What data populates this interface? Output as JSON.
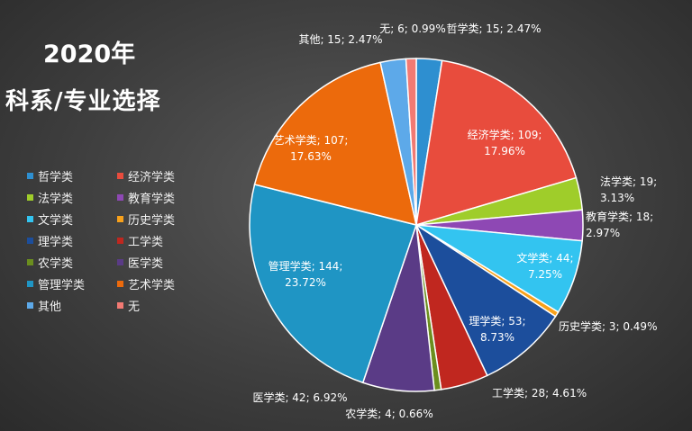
{
  "chart_data": {
    "type": "pie",
    "title_line1": "2020年",
    "title_line2": "科系/专业选择",
    "legend_placement": "left",
    "slices": [
      {
        "name": "哲学类",
        "value": 15,
        "percent": "2.47%",
        "color": "#2e8fd0",
        "label_lines": [
          "哲学类; 15; 2.47%"
        ]
      },
      {
        "name": "经济学类",
        "value": 109,
        "percent": "17.96%",
        "color": "#e84c3d",
        "label_lines": [
          "经济学类; 109;",
          "17.96%"
        ]
      },
      {
        "name": "法学类",
        "value": 19,
        "percent": "3.13%",
        "color": "#9fcd2a",
        "label_lines": [
          "法学类; 19;",
          "3.13%"
        ]
      },
      {
        "name": "教育学类",
        "value": 18,
        "percent": "2.97%",
        "color": "#8e48b4",
        "label_lines": [
          "教育学类; 18;",
          "2.97%"
        ]
      },
      {
        "name": "文学类",
        "value": 44,
        "percent": "7.25%",
        "color": "#33c4f0",
        "label_lines": [
          "文学类; 44;",
          "7.25%"
        ]
      },
      {
        "name": "历史学类",
        "value": 3,
        "percent": "0.49%",
        "color": "#f8a11b",
        "label_lines": [
          "历史学类; 3; 0.49%"
        ]
      },
      {
        "name": "理学类",
        "value": 53,
        "percent": "8.73%",
        "color": "#1c4e9c",
        "label_lines": [
          "理学类; 53;",
          "8.73%"
        ]
      },
      {
        "name": "工学类",
        "value": 28,
        "percent": "4.61%",
        "color": "#c0271f",
        "label_lines": [
          "工学类; 28; 4.61%"
        ]
      },
      {
        "name": "农学类",
        "value": 4,
        "percent": "0.66%",
        "color": "#6b8e1e",
        "label_lines": [
          "农学类; 4; 0.66%"
        ]
      },
      {
        "name": "医学类",
        "value": 42,
        "percent": "6.92%",
        "color": "#5a3b86",
        "label_lines": [
          "医学类; 42; 6.92%"
        ]
      },
      {
        "name": "管理学类",
        "value": 144,
        "percent": "23.72%",
        "color": "#1f95c4",
        "label_lines": [
          "管理学类; 144;",
          "23.72%"
        ]
      },
      {
        "name": "艺术学类",
        "value": 107,
        "percent": "17.63%",
        "color": "#ec6a0c",
        "label_lines": [
          "艺术学类; 107;",
          "17.63%"
        ]
      },
      {
        "name": "其他",
        "value": 15,
        "percent": "2.47%",
        "color": "#5da9e9",
        "label_lines": [
          "其他; 15; 2.47%"
        ]
      },
      {
        "name": "无",
        "value": 6,
        "percent": "0.99%",
        "color": "#f27a73",
        "label_lines": [
          "无; 6; 0.99%"
        ]
      }
    ]
  }
}
